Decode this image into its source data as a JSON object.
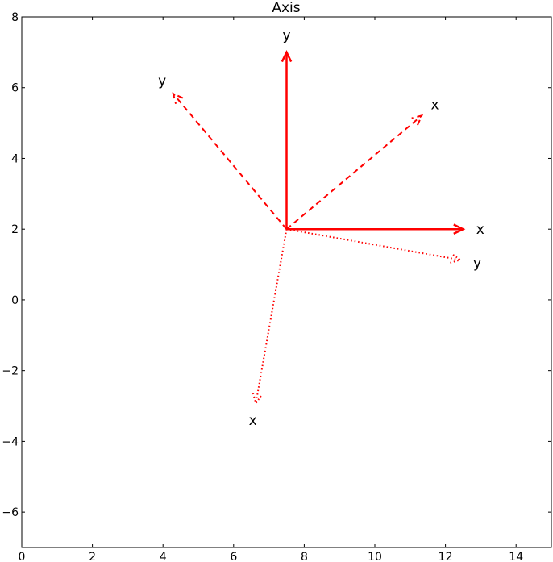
{
  "chart_data": {
    "type": "line",
    "title": "Axis",
    "xlabel": "",
    "ylabel": "",
    "xlim": [
      0,
      15
    ],
    "ylim": [
      -7,
      8
    ],
    "xticks": [
      0,
      2,
      4,
      6,
      8,
      10,
      12,
      14
    ],
    "yticks": [
      -6,
      -4,
      -2,
      0,
      2,
      4,
      6,
      8
    ],
    "grid": false,
    "color": "#ff0000",
    "origin": [
      7.5,
      2
    ],
    "arrows": [
      {
        "label": "x",
        "style": "solid",
        "end": [
          12.5,
          2.0
        ]
      },
      {
        "label": "y",
        "style": "solid",
        "end": [
          7.5,
          7.0
        ]
      },
      {
        "label": "x",
        "style": "dashed",
        "end": [
          11.33,
          5.21
        ]
      },
      {
        "label": "y",
        "style": "dashed",
        "end": [
          4.29,
          5.83
        ]
      },
      {
        "label": "x",
        "style": "dotted",
        "end": [
          6.63,
          -2.92
        ]
      },
      {
        "label": "y",
        "style": "dotted",
        "end": [
          12.42,
          1.13
        ]
      }
    ]
  }
}
